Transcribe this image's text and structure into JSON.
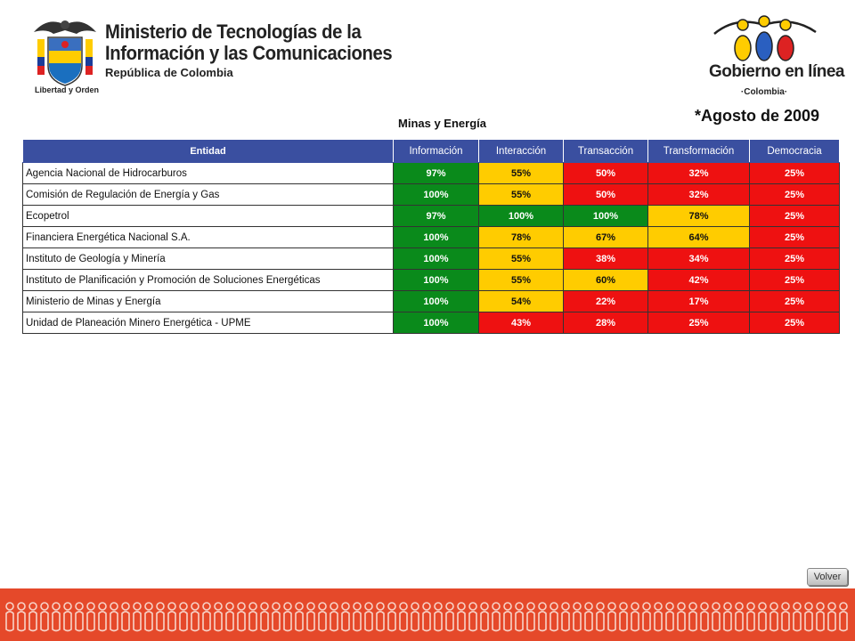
{
  "header": {
    "ministry": {
      "line1": "Ministerio de Tecnologías de la",
      "line2": "Información y las Comunicaciones",
      "line3": "República de Colombia",
      "motto": "Libertad y Orden"
    },
    "gel": {
      "title": "Gobierno en línea",
      "subtitle": "·Colombia·"
    }
  },
  "date_label": "*Agosto de 2009",
  "sector_title": "Minas y Energía",
  "table": {
    "columns": [
      "Entidad",
      "Información",
      "Interacción",
      "Transacción",
      "Transformación",
      "Democracia"
    ],
    "rows": [
      {
        "entity": "Agencia Nacional de Hidrocarburos",
        "values": [
          "97%",
          "55%",
          "50%",
          "32%",
          "25%"
        ]
      },
      {
        "entity": "Comisión de Regulación de Energía y Gas",
        "values": [
          "100%",
          "55%",
          "50%",
          "32%",
          "25%"
        ]
      },
      {
        "entity": "Ecopetrol",
        "values": [
          "97%",
          "100%",
          "100%",
          "78%",
          "25%"
        ]
      },
      {
        "entity": "Financiera Energética Nacional S.A.",
        "values": [
          "100%",
          "78%",
          "67%",
          "64%",
          "25%"
        ]
      },
      {
        "entity": "Instituto de Geología y Minería",
        "values": [
          "100%",
          "55%",
          "38%",
          "34%",
          "25%"
        ]
      },
      {
        "entity": "Instituto de Planificación y Promoción de Soluciones Energéticas",
        "values": [
          "100%",
          "55%",
          "60%",
          "42%",
          "25%"
        ]
      },
      {
        "entity": "Ministerio de Minas y Energía",
        "values": [
          "100%",
          "54%",
          "22%",
          "17%",
          "25%"
        ]
      },
      {
        "entity": "Unidad de Planeación Minero Energética - UPME",
        "values": [
          "100%",
          "43%",
          "28%",
          "25%",
          "25%"
        ]
      }
    ]
  },
  "cell_colors": {
    "green": "#0a8a1b",
    "yellow": "#ffcc00",
    "red": "#ee1111"
  },
  "volver_label": "Volver",
  "icons": {
    "shield": "colombia-coat-of-arms-icon",
    "gel_logo": "gobierno-en-linea-figures-icon",
    "footer": "people-pattern-icon"
  }
}
